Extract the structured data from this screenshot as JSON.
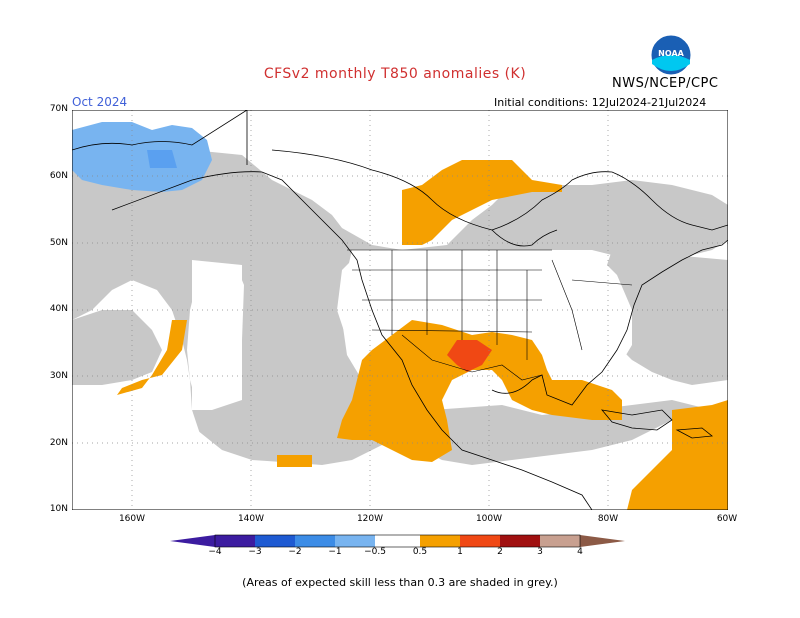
{
  "title": "CFSv2 monthly T850 anomalies (K)",
  "month": "Oct 2024",
  "agency": "NWS/NCEP/CPC",
  "initial_conditions": "Initial conditions: 12Jul2024-21Jul2024",
  "footnote": "(Areas of expected skill less than 0.3 are shaded in grey.)",
  "logo_text": "NOAA",
  "map": {
    "lat_labels": [
      "70N",
      "60N",
      "50N",
      "40N",
      "30N",
      "20N",
      "10N"
    ],
    "lon_labels": [
      "160W",
      "140W",
      "120W",
      "100W",
      "80W",
      "60W"
    ],
    "lat_range": [
      10,
      70
    ],
    "lon_range": [
      -170,
      -60
    ],
    "colors": {
      "land": "#ffffff",
      "grey_low_skill": "#c8c8c8",
      "neg_0_5_to_1": "#78b4f0",
      "pos_0_5_to_1": "#f5a000",
      "pos_1_to_2": "#f04814",
      "pos_2_to_3": "#a01010",
      "pos_3_to_4": "#c8a090"
    }
  },
  "colorbar": {
    "labels": [
      "−4",
      "−3",
      "−2",
      "−1",
      "−0.5",
      "0.5",
      "1",
      "2",
      "3",
      "4"
    ],
    "colors": [
      "#3c1ca0",
      "#1e5ad2",
      "#3c8ce6",
      "#78b4f0",
      "#ffffff",
      "#f5a000",
      "#f04814",
      "#a01010",
      "#c8a090",
      "#8c5a46"
    ]
  }
}
